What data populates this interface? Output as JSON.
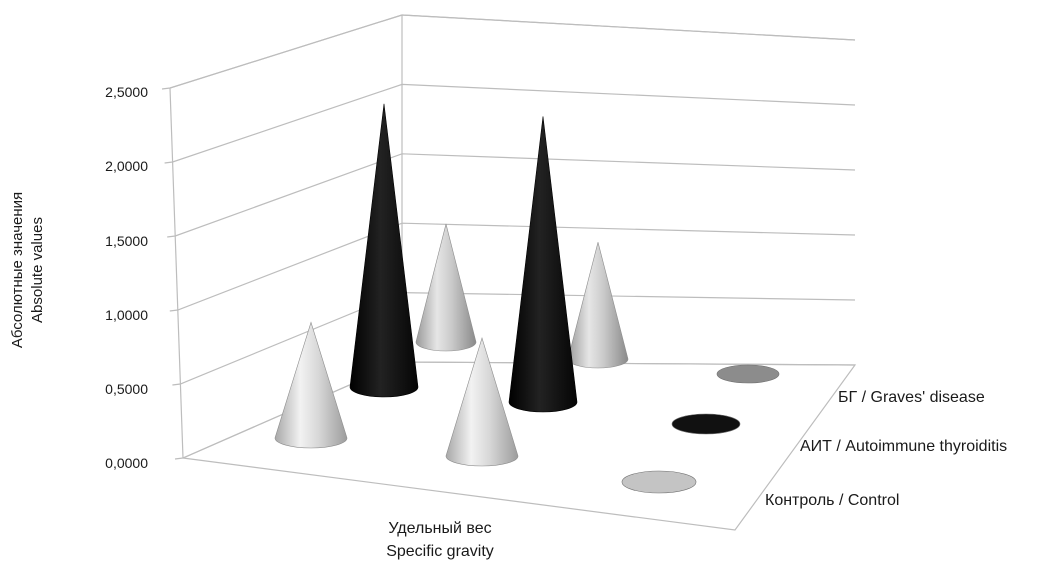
{
  "chart_data": {
    "type": "bar",
    "subtype": "3d-cone",
    "title": "",
    "ylabel_lines": [
      "Абсолютные значения",
      "Absolute values"
    ],
    "xlabel_lines": [
      "Удельный вес",
      "Specific gravity"
    ],
    "ylim": [
      0,
      2.5
    ],
    "yticks": [
      "0,0000",
      "0,5000",
      "1,0000",
      "1,5000",
      "2,0000",
      "2,5000"
    ],
    "ytick_values": [
      0,
      0.5,
      1.0,
      1.5,
      2.0,
      2.5
    ],
    "grid": true,
    "legend_position": "right, along depth axis",
    "series": [
      {
        "name": "БГ / Graves' disease",
        "color": "#8c8c8c",
        "values": [
          1.0,
          0.99
        ]
      },
      {
        "name": "АИТ / Autoimmune thyroiditis",
        "color": "#111111",
        "values": [
          2.4,
          2.42
        ]
      },
      {
        "name": "Контроль / Control",
        "color": "#c4c4c4",
        "values": [
          0.98,
          1.0
        ]
      }
    ]
  }
}
